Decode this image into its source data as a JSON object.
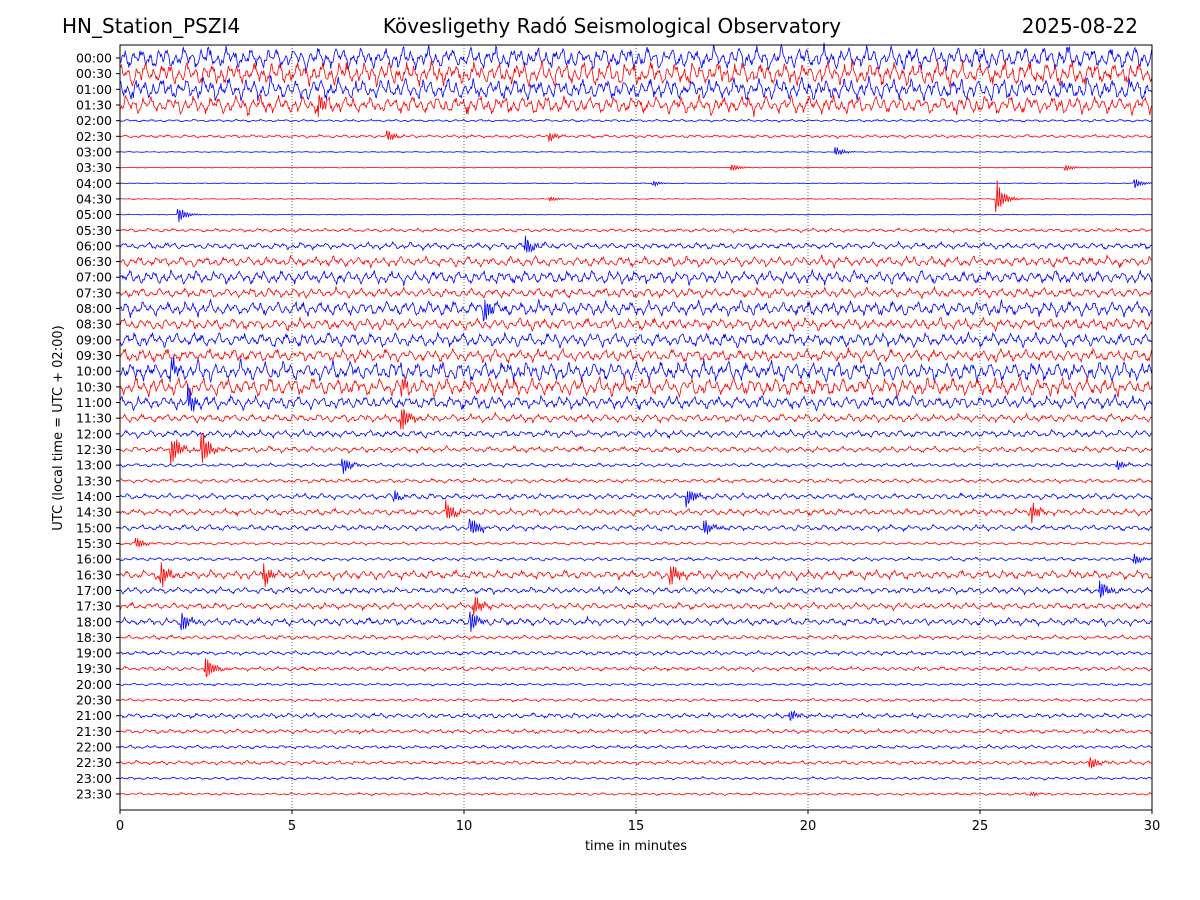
{
  "header": {
    "station": "HN_Station_PSZI4",
    "observatory": "Kövesligethy Radó Seismological Observatory",
    "date": "2025-08-22"
  },
  "chart_data": {
    "type": "line",
    "title": "Kövesligethy Radó Seismological Observatory",
    "xlabel": "time in minutes",
    "ylabel": "UTC (local time = UTC + 02:00)",
    "xlim": [
      0,
      30
    ],
    "xticks": [
      0,
      5,
      10,
      15,
      20,
      25,
      30
    ],
    "grid": "vertical dotted at 5-minute intervals",
    "rows": [
      "00:00",
      "00:30",
      "01:00",
      "01:30",
      "02:00",
      "02:30",
      "03:00",
      "03:30",
      "04:00",
      "04:30",
      "05:00",
      "05:30",
      "06:00",
      "06:30",
      "07:00",
      "07:30",
      "08:00",
      "08:30",
      "09:00",
      "09:30",
      "10:00",
      "10:30",
      "11:00",
      "11:30",
      "12:00",
      "12:30",
      "13:00",
      "13:30",
      "14:00",
      "14:30",
      "15:00",
      "15:30",
      "16:00",
      "16:30",
      "17:00",
      "17:30",
      "18:00",
      "18:30",
      "19:00",
      "19:30",
      "20:00",
      "20:30",
      "21:00",
      "21:30",
      "22:00",
      "22:30",
      "23:00",
      "23:30"
    ],
    "colors": [
      "#0000ff",
      "#ff0000"
    ],
    "activity": [
      3.0,
      3.2,
      3.0,
      2.5,
      0.35,
      0.45,
      0.12,
      0.08,
      0.1,
      0.12,
      0.1,
      0.5,
      0.9,
      1.4,
      1.8,
      1.3,
      2.0,
      1.6,
      1.9,
      1.7,
      2.6,
      2.4,
      1.8,
      1.1,
      1.0,
      0.8,
      0.5,
      0.6,
      0.8,
      0.9,
      0.8,
      0.4,
      0.5,
      1.2,
      0.9,
      0.9,
      1.0,
      0.6,
      0.6,
      0.6,
      0.35,
      0.4,
      0.7,
      0.6,
      0.5,
      0.55,
      0.4,
      0.35
    ],
    "events": [
      {
        "row": 3,
        "minute": 5.8,
        "amp": 4.0
      },
      {
        "row": 5,
        "minute": 7.8,
        "amp": 2.0
      },
      {
        "row": 5,
        "minute": 12.5,
        "amp": 1.8
      },
      {
        "row": 6,
        "minute": 20.8,
        "amp": 2.0
      },
      {
        "row": 7,
        "minute": 17.8,
        "amp": 1.5
      },
      {
        "row": 7,
        "minute": 27.5,
        "amp": 1.2
      },
      {
        "row": 8,
        "minute": 15.5,
        "amp": 1.0
      },
      {
        "row": 8,
        "minute": 29.5,
        "amp": 2.0
      },
      {
        "row": 9,
        "minute": 12.5,
        "amp": 1.0
      },
      {
        "row": 9,
        "minute": 25.5,
        "amp": 6.0
      },
      {
        "row": 10,
        "minute": 1.7,
        "amp": 3.0
      },
      {
        "row": 12,
        "minute": 11.8,
        "amp": 4.0
      },
      {
        "row": 16,
        "minute": 10.6,
        "amp": 5.0
      },
      {
        "row": 20,
        "minute": 1.5,
        "amp": 4.0
      },
      {
        "row": 21,
        "minute": 8.2,
        "amp": 4.0
      },
      {
        "row": 22,
        "minute": 2.0,
        "amp": 5.0
      },
      {
        "row": 23,
        "minute": 8.2,
        "amp": 5.0
      },
      {
        "row": 25,
        "minute": 1.5,
        "amp": 6.0
      },
      {
        "row": 25,
        "minute": 2.4,
        "amp": 7.0
      },
      {
        "row": 26,
        "minute": 6.5,
        "amp": 3.0
      },
      {
        "row": 26,
        "minute": 29.0,
        "amp": 2.0
      },
      {
        "row": 28,
        "minute": 8.0,
        "amp": 2.0
      },
      {
        "row": 28,
        "minute": 16.5,
        "amp": 4.0
      },
      {
        "row": 29,
        "minute": 9.5,
        "amp": 4.0
      },
      {
        "row": 29,
        "minute": 26.5,
        "amp": 4.0
      },
      {
        "row": 30,
        "minute": 10.2,
        "amp": 4.0
      },
      {
        "row": 30,
        "minute": 17.0,
        "amp": 3.0
      },
      {
        "row": 31,
        "minute": 0.5,
        "amp": 2.0
      },
      {
        "row": 32,
        "minute": 29.5,
        "amp": 2.0
      },
      {
        "row": 33,
        "minute": 1.2,
        "amp": 5.0
      },
      {
        "row": 33,
        "minute": 4.2,
        "amp": 4.0
      },
      {
        "row": 33,
        "minute": 16.0,
        "amp": 5.0
      },
      {
        "row": 34,
        "minute": 28.5,
        "amp": 4.0
      },
      {
        "row": 35,
        "minute": 10.3,
        "amp": 4.0
      },
      {
        "row": 36,
        "minute": 1.8,
        "amp": 4.0
      },
      {
        "row": 36,
        "minute": 10.2,
        "amp": 4.0
      },
      {
        "row": 39,
        "minute": 2.5,
        "amp": 5.0
      },
      {
        "row": 42,
        "minute": 19.5,
        "amp": 2.0
      },
      {
        "row": 45,
        "minute": 28.2,
        "amp": 3.0
      },
      {
        "row": 47,
        "minute": 26.5,
        "amp": 1.0
      }
    ]
  }
}
